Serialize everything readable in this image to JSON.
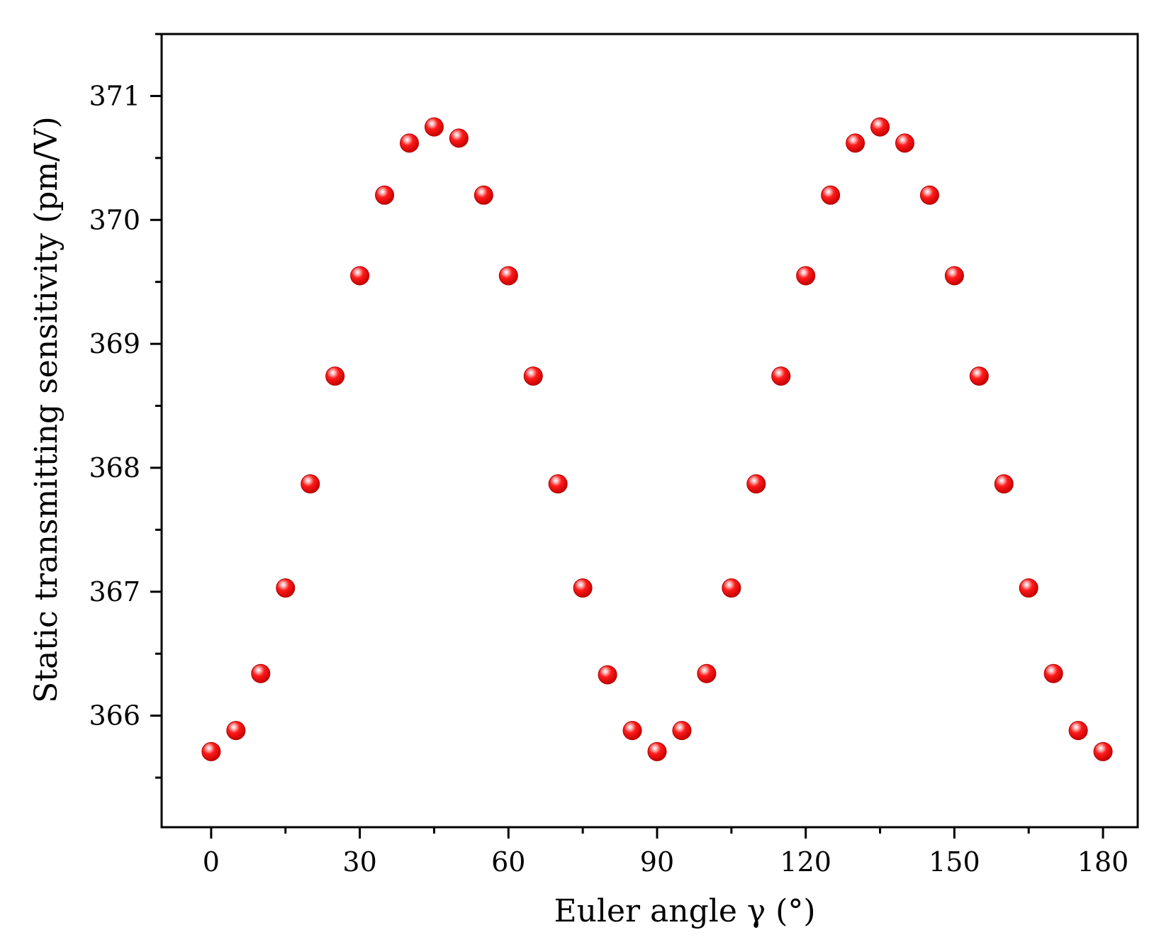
{
  "chart_data": {
    "type": "scatter",
    "title": "",
    "xlabel": "Euler angle γ (°)",
    "ylabel": "Static transmitting sensitivity (pm/V)",
    "xlim": [
      -10,
      187
    ],
    "ylim": [
      365.1,
      371.5
    ],
    "x_ticks": [
      0,
      30,
      60,
      90,
      120,
      150,
      180
    ],
    "y_ticks": [
      366,
      367,
      368,
      369,
      370,
      371
    ],
    "y_minor_step": 0.5,
    "grid": false,
    "legend": "none",
    "marker_color": "#ff0000",
    "series": [
      {
        "x": [
          0,
          5,
          10,
          15,
          20,
          25,
          30,
          35,
          40,
          45,
          50,
          55,
          60,
          65,
          70,
          75,
          80,
          85,
          90,
          95,
          100,
          105,
          110,
          115,
          120,
          125,
          130,
          135,
          140,
          145,
          150,
          155,
          160,
          165,
          170,
          175,
          180
        ],
        "y": [
          365.71,
          365.88,
          366.34,
          367.03,
          367.87,
          368.74,
          369.55,
          370.2,
          370.62,
          370.75,
          370.66,
          370.2,
          369.55,
          368.74,
          367.87,
          367.03,
          366.33,
          365.88,
          365.71,
          365.88,
          366.34,
          367.03,
          367.87,
          368.74,
          369.55,
          370.2,
          370.62,
          370.75,
          370.62,
          370.2,
          369.55,
          368.74,
          367.87,
          367.03,
          366.34,
          365.88,
          365.71
        ]
      }
    ]
  }
}
